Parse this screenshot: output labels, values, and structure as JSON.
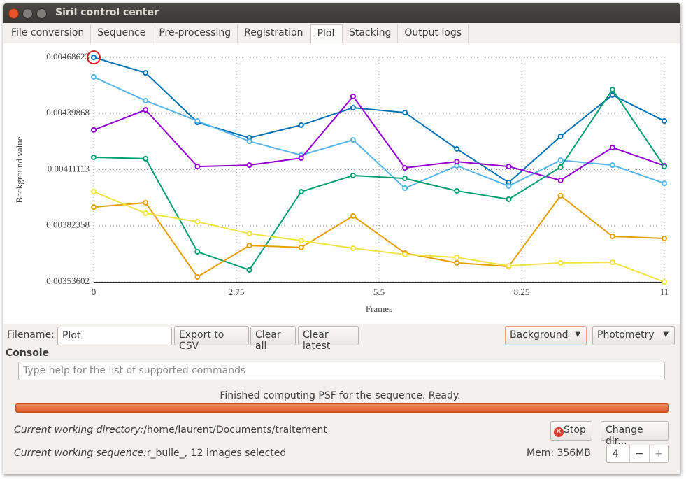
{
  "window": {
    "title": "Siril control center"
  },
  "tabs": [
    "File conversion",
    "Sequence",
    "Pre-processing",
    "Registration",
    "Plot",
    "Stacking",
    "Output logs"
  ],
  "chart_data": {
    "type": "line",
    "xlabel": "Frames",
    "ylabel": "Background value",
    "x": [
      0,
      1,
      2,
      3,
      4,
      5,
      6,
      7,
      8,
      9,
      10,
      11
    ],
    "series": [
      {
        "color": "#0072b2",
        "values": [
          0.004686,
          0.004607,
          0.004353,
          0.004274,
          0.004339,
          0.004428,
          0.004403,
          0.004217,
          0.004045,
          0.004281,
          0.004493,
          0.00436
        ]
      },
      {
        "color": "#56b4e9",
        "values": [
          0.004586,
          0.004464,
          0.00436,
          0.004256,
          0.004185,
          0.004263,
          0.004016,
          0.004131,
          0.004027,
          0.004159,
          0.004134,
          0.004041
        ]
      },
      {
        "color": "#9400d3",
        "values": [
          0.004314,
          0.004417,
          0.004127,
          0.004134,
          0.00417,
          0.004486,
          0.00412,
          0.004152,
          0.004127,
          0.004056,
          0.004224,
          0.004131
        ]
      },
      {
        "color": "#009e73",
        "values": [
          0.004174,
          0.004167,
          0.00369,
          0.003597,
          0.003998,
          0.004081,
          0.004066,
          0.004002,
          0.003959,
          0.004124,
          0.004521,
          0.004127
        ]
      },
      {
        "color": "#e69f00",
        "values": [
          0.003919,
          0.003941,
          0.003561,
          0.003722,
          0.003712,
          0.003873,
          0.003683,
          0.003633,
          0.003615,
          0.003977,
          0.003769,
          0.003758
        ]
      },
      {
        "color": "#f0e442",
        "values": [
          0.003998,
          0.003887,
          0.003844,
          0.003783,
          0.003747,
          0.003708,
          0.003676,
          0.003661,
          0.003618,
          0.003633,
          0.003636,
          0.003536
        ]
      }
    ],
    "xlim": [
      0,
      11
    ],
    "ylim": [
      0.00353602,
      0.00468623
    ],
    "xticks": [
      0,
      2.75,
      5.5,
      8.25,
      11
    ],
    "yticks": [
      0.00353602,
      0.00382358,
      0.00411113,
      0.00439868,
      0.00468623
    ],
    "grid": true
  },
  "toolbar": {
    "filename_label": "Filename:",
    "filename_value": "Plot",
    "buttons": [
      "Export to CSV",
      "Clear all",
      "Clear latest"
    ],
    "dropdowns": [
      "Background",
      "Photometry"
    ]
  },
  "console": {
    "label": "Console",
    "placeholder": "Type help for the list of supported commands",
    "status": "Finished computing PSF for the sequence. Ready."
  },
  "footer": {
    "cwd_label": "Current working directory:",
    "cwd": "/home/laurent/Documents/traitement",
    "stop": "Stop",
    "change_dir": "Change dir...",
    "seq_label": "Current working sequence:",
    "seq": "r_bulle_, 12 images selected",
    "mem": "Mem: 356MB",
    "threads": "4",
    "minus": "−",
    "plus": "+"
  }
}
